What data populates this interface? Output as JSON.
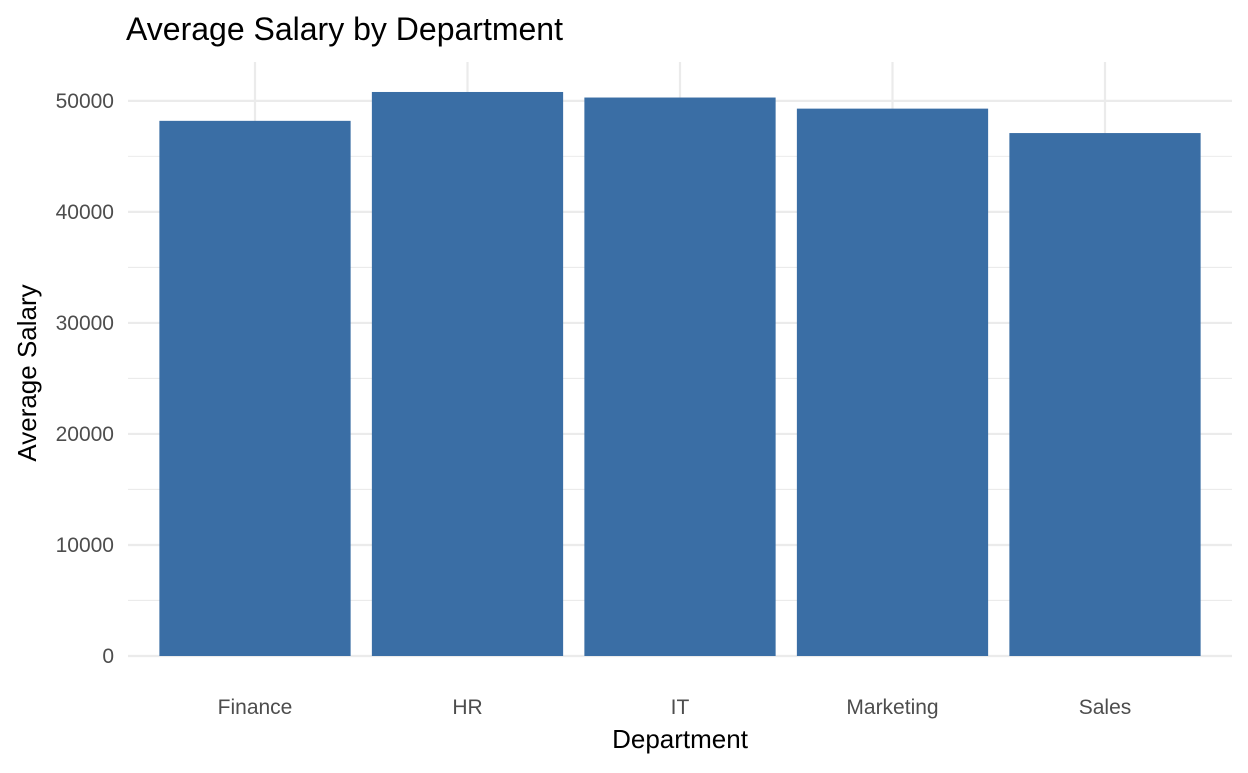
{
  "chart_data": {
    "type": "bar",
    "title": "Average Salary by Department",
    "xlabel": "Department",
    "ylabel": "Average Salary",
    "categories": [
      "Finance",
      "HR",
      "IT",
      "Marketing",
      "Sales"
    ],
    "values": [
      48200,
      50800,
      50300,
      49300,
      47100
    ],
    "ylim": [
      0,
      53500
    ],
    "yticks": [
      0,
      10000,
      20000,
      30000,
      40000,
      50000
    ],
    "ytick_labels": [
      "0",
      "10000",
      "20000",
      "30000",
      "40000",
      "50000"
    ],
    "grid": true,
    "legend": "none",
    "bar_color": "#3a6ea5",
    "grid_color": "#ebebeb"
  }
}
